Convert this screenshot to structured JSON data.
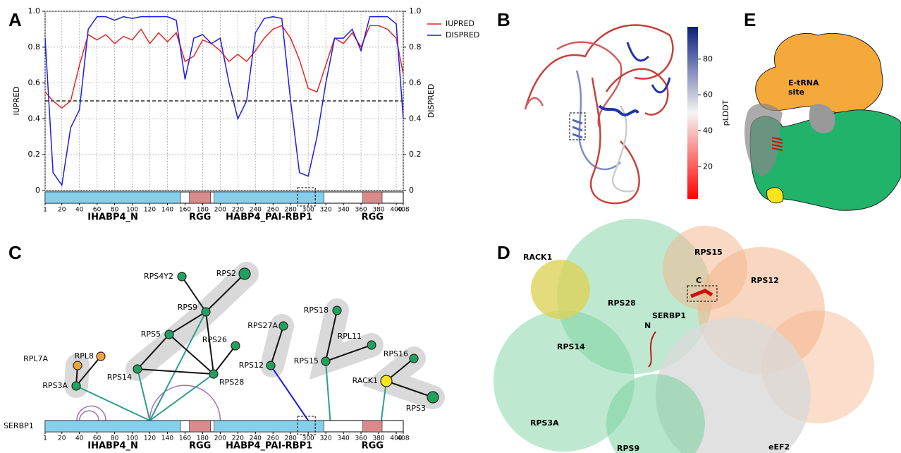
{
  "panel_labels": [
    "A",
    "B",
    "C",
    "D",
    "E"
  ],
  "domains": [
    {
      "name": "IHABP4_N",
      "start": 1,
      "end": 155,
      "color": "#87ceeb"
    },
    {
      "name": "RGG",
      "start": 165,
      "end": 189,
      "color": "#d98a8a"
    },
    {
      "name": "HABP4_PAI-RBP1",
      "start": 193,
      "end": 318,
      "color": "#87ceeb"
    },
    {
      "name": "RGG",
      "start": 362,
      "end": 384,
      "color": "#d98a8a"
    }
  ],
  "highlight": [
    288,
    308
  ],
  "chart_data": {
    "type": "line",
    "ylabel": "IUPRED",
    "y2label": "DISPRED",
    "x": [
      1,
      10,
      20,
      30,
      40,
      50,
      60,
      70,
      80,
      90,
      100,
      110,
      120,
      130,
      140,
      150,
      160,
      170,
      180,
      190,
      200,
      210,
      220,
      230,
      240,
      250,
      260,
      270,
      280,
      290,
      300,
      310,
      320,
      330,
      340,
      350,
      360,
      370,
      380,
      390,
      400,
      408
    ],
    "series": [
      {
        "name": "IUPRED",
        "color": "#e8231f",
        "values": [
          0.55,
          0.5,
          0.46,
          0.5,
          0.7,
          0.87,
          0.84,
          0.87,
          0.82,
          0.86,
          0.84,
          0.9,
          0.82,
          0.88,
          0.83,
          0.88,
          0.72,
          0.75,
          0.84,
          0.82,
          0.78,
          0.72,
          0.76,
          0.72,
          0.78,
          0.85,
          0.9,
          0.92,
          0.85,
          0.73,
          0.57,
          0.55,
          0.7,
          0.85,
          0.82,
          0.88,
          0.8,
          0.92,
          0.92,
          0.9,
          0.85,
          0.65
        ]
      },
      {
        "name": "DISPRED",
        "color": "#1c1cf0",
        "axis": "y2",
        "values": [
          0.85,
          0.1,
          0.03,
          0.35,
          0.45,
          0.9,
          0.97,
          0.97,
          0.95,
          0.97,
          0.96,
          0.97,
          0.97,
          0.97,
          0.97,
          0.95,
          0.62,
          0.85,
          0.87,
          0.82,
          0.85,
          0.6,
          0.4,
          0.5,
          0.88,
          0.96,
          0.97,
          0.96,
          0.5,
          0.1,
          0.08,
          0.3,
          0.6,
          0.85,
          0.85,
          0.9,
          0.78,
          0.97,
          0.97,
          0.97,
          0.93,
          0.4
        ]
      }
    ],
    "threshold": 0.5,
    "xlim": [
      1,
      408
    ],
    "xticks": [
      1,
      20,
      40,
      60,
      80,
      100,
      120,
      140,
      160,
      180,
      200,
      220,
      240,
      260,
      280,
      300,
      320,
      340,
      360,
      380,
      400,
      408
    ],
    "ylim": [
      0,
      1
    ],
    "yticks": [
      0,
      0.2,
      0.4,
      0.6,
      0.8,
      {
        "value": 1,
        "label": "1.0"
      }
    ],
    "y2lim": [
      0,
      1
    ],
    "y2ticks": [
      0,
      0.2,
      0.4,
      0.6,
      0.8,
      {
        "value": 1,
        "label": "1.0"
      }
    ],
    "grid": true,
    "legend": "upper right"
  },
  "panel_b": {
    "colorbar_label": "pLDDT",
    "clim": [
      2,
      98
    ],
    "ticks": [
      20,
      40,
      60,
      80
    ]
  },
  "panel_c": {
    "protein": "SERBP1",
    "nodes": [
      {
        "name": "RPS4Y2",
        "color": "#22a060"
      },
      {
        "name": "RPS2",
        "color": "#22a060"
      },
      {
        "name": "RPS9",
        "color": "#22a060"
      },
      {
        "name": "RPS5",
        "color": "#22a060"
      },
      {
        "name": "RPS26",
        "color": "#22a060"
      },
      {
        "name": "RPS14",
        "color": "#22a060"
      },
      {
        "name": "RPS28",
        "color": "#22a060"
      },
      {
        "name": "RPL7A",
        "color": "#f5a33a"
      },
      {
        "name": "RPL8",
        "color": "#f5a33a"
      },
      {
        "name": "RPS3A",
        "color": "#22a060"
      },
      {
        "name": "RPS27A",
        "color": "#22a060"
      },
      {
        "name": "RPS18",
        "color": "#22a060"
      },
      {
        "name": "RPL11",
        "color": "#22a060"
      },
      {
        "name": "RPS12",
        "color": "#22a060"
      },
      {
        "name": "RPS15",
        "color": "#22a060"
      },
      {
        "name": "RPS16",
        "color": "#22a060"
      },
      {
        "name": "RACK1",
        "color": "#f5e51a"
      },
      {
        "name": "RPS3",
        "color": "#22a060"
      }
    ],
    "edges": [
      [
        0,
        2
      ],
      [
        1,
        2
      ],
      [
        2,
        3
      ],
      [
        2,
        6
      ],
      [
        3,
        5
      ],
      [
        3,
        6
      ],
      [
        5,
        6
      ],
      [
        4,
        6
      ],
      [
        7,
        9
      ],
      [
        8,
        9
      ],
      [
        10,
        13
      ],
      [
        11,
        14
      ],
      [
        12,
        14
      ],
      [
        15,
        16
      ],
      [
        16,
        17
      ]
    ],
    "crosslinks": [
      {
        "residue": 120,
        "node": 9,
        "color": "#2e9e8f"
      },
      {
        "residue": 120,
        "node": 5,
        "color": "#2e9e8f"
      },
      {
        "residue": 120,
        "node": 2,
        "color": "#2e9e8f"
      },
      {
        "residue": 120,
        "node": 6,
        "color": "#2e9e8f"
      },
      {
        "residue": 300,
        "node": 13,
        "color": "#1c1cf0"
      },
      {
        "residue": 325,
        "node": 14,
        "color": "#2e9e8f"
      },
      {
        "residue": 383,
        "node": 16,
        "color": "#2e9e8f"
      }
    ],
    "self_links": [
      [
        37,
        70
      ],
      [
        40,
        62
      ],
      [
        120,
        200
      ]
    ]
  },
  "panel_d": {
    "labels": [
      "RACK1",
      "RPS15",
      "RPS12",
      "RPS28",
      "SERBP1",
      "C",
      "N",
      "RPS14",
      "RPS3A",
      "RPS9",
      "eEF2"
    ]
  },
  "panel_e": {
    "site_label": [
      "E-tRNA",
      "site"
    ]
  }
}
